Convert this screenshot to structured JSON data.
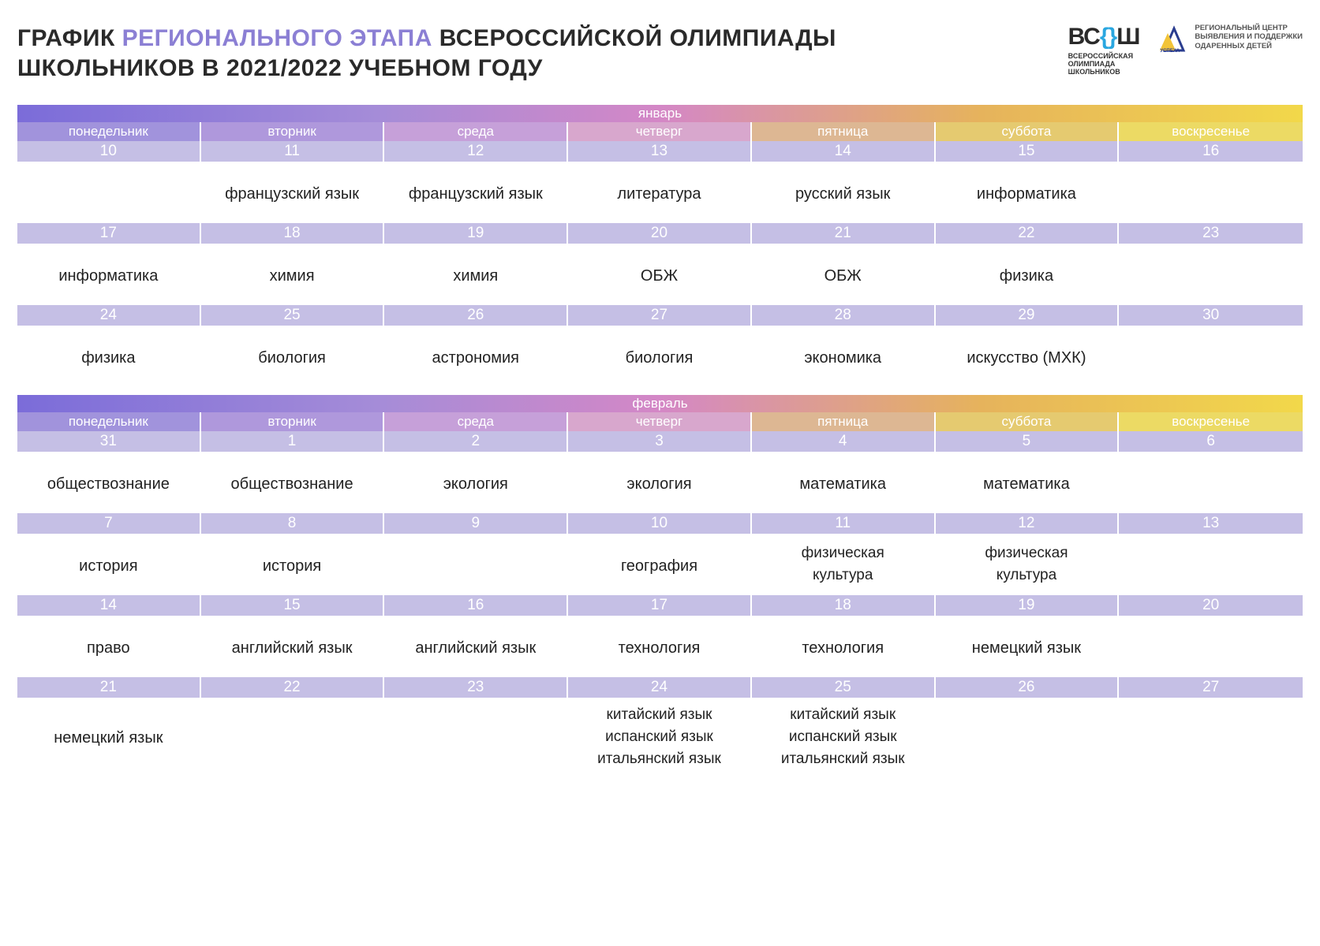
{
  "header": {
    "title_pre": "ГРАФИК ",
    "title_accent": "РЕГИОНАЛЬНОГО ЭТАПА",
    "title_post": " ВСЕРОССИЙСКОЙ ОЛИМПИАДЫ",
    "title_line2": "ШКОЛЬНИКОВ В 2021/2022 УЧЕБНОМ ГОДУ"
  },
  "logos": {
    "vsosh_mark_pre": "ВС",
    "vsosh_mark_post": "Ш",
    "vsosh_sub1": "ВСЕРОССИЙСКАЯ",
    "vsosh_sub2": "ОЛИМПИАДА",
    "vsosh_sub3": "ШКОЛЬНИКОВ",
    "center_badge": "УСПЕХА",
    "center_line1": "РЕГИОНАЛЬНЫЙ ЦЕНТР",
    "center_line2": "ВЫЯВЛЕНИЯ И ПОДДЕРЖКИ",
    "center_line3": "ОДАРЕННЫХ ДЕТЕЙ"
  },
  "dow": [
    "понедельник",
    "вторник",
    "среда",
    "четверг",
    "пятница",
    "суббота",
    "воскресенье"
  ],
  "months": {
    "jan": {
      "label": "январь",
      "weeks": [
        {
          "nums": [
            "10",
            "11",
            "12",
            "13",
            "14",
            "15",
            "16"
          ],
          "subjects": [
            [],
            [
              "французский язык"
            ],
            [
              "французский язык"
            ],
            [
              "литература"
            ],
            [
              "русский язык"
            ],
            [
              "информатика"
            ],
            []
          ]
        },
        {
          "nums": [
            "17",
            "18",
            "19",
            "20",
            "21",
            "22",
            "23"
          ],
          "subjects": [
            [
              "информатика"
            ],
            [
              "химия"
            ],
            [
              "химия"
            ],
            [
              "ОБЖ"
            ],
            [
              "ОБЖ"
            ],
            [
              "физика"
            ],
            []
          ]
        },
        {
          "nums": [
            "24",
            "25",
            "26",
            "27",
            "28",
            "29",
            "30"
          ],
          "subjects": [
            [
              "физика"
            ],
            [
              "биология"
            ],
            [
              "астрономия"
            ],
            [
              "биология"
            ],
            [
              "экономика"
            ],
            [
              "искусство (МХК)"
            ],
            []
          ]
        }
      ]
    },
    "feb": {
      "label": "февраль",
      "weeks": [
        {
          "nums": [
            "31",
            "1",
            "2",
            "3",
            "4",
            "5",
            "6"
          ],
          "subjects": [
            [
              "обществознание"
            ],
            [
              "обществознание"
            ],
            [
              "экология"
            ],
            [
              "экология"
            ],
            [
              "математика"
            ],
            [
              "математика"
            ],
            []
          ]
        },
        {
          "nums": [
            "7",
            "8",
            "9",
            "10",
            "11",
            "12",
            "13"
          ],
          "subjects": [
            [
              "история"
            ],
            [
              "история"
            ],
            [],
            [
              "география"
            ],
            [
              "физическая",
              "культура"
            ],
            [
              "физическая",
              "культура"
            ],
            []
          ]
        },
        {
          "nums": [
            "14",
            "15",
            "16",
            "17",
            "18",
            "19",
            "20"
          ],
          "subjects": [
            [
              "право"
            ],
            [
              "английский язык"
            ],
            [
              "английский язык"
            ],
            [
              "технология"
            ],
            [
              "технология"
            ],
            [
              "немецкий язык"
            ],
            []
          ]
        },
        {
          "nums": [
            "21",
            "22",
            "23",
            "24",
            "25",
            "26",
            "27"
          ],
          "subjects": [
            [
              "немецкий язык"
            ],
            [],
            [],
            [
              "китайский язык",
              "испанский язык",
              "итальянский язык"
            ],
            [
              "китайский язык",
              "испанский язык",
              "итальянский язык"
            ],
            [],
            []
          ]
        }
      ]
    }
  },
  "colors": {
    "accent_purple": "#8b7fd4",
    "daynum_bg": "#c5bfe5",
    "grad_start": "#7b6cd9",
    "grad_end": "#f2d84a"
  }
}
